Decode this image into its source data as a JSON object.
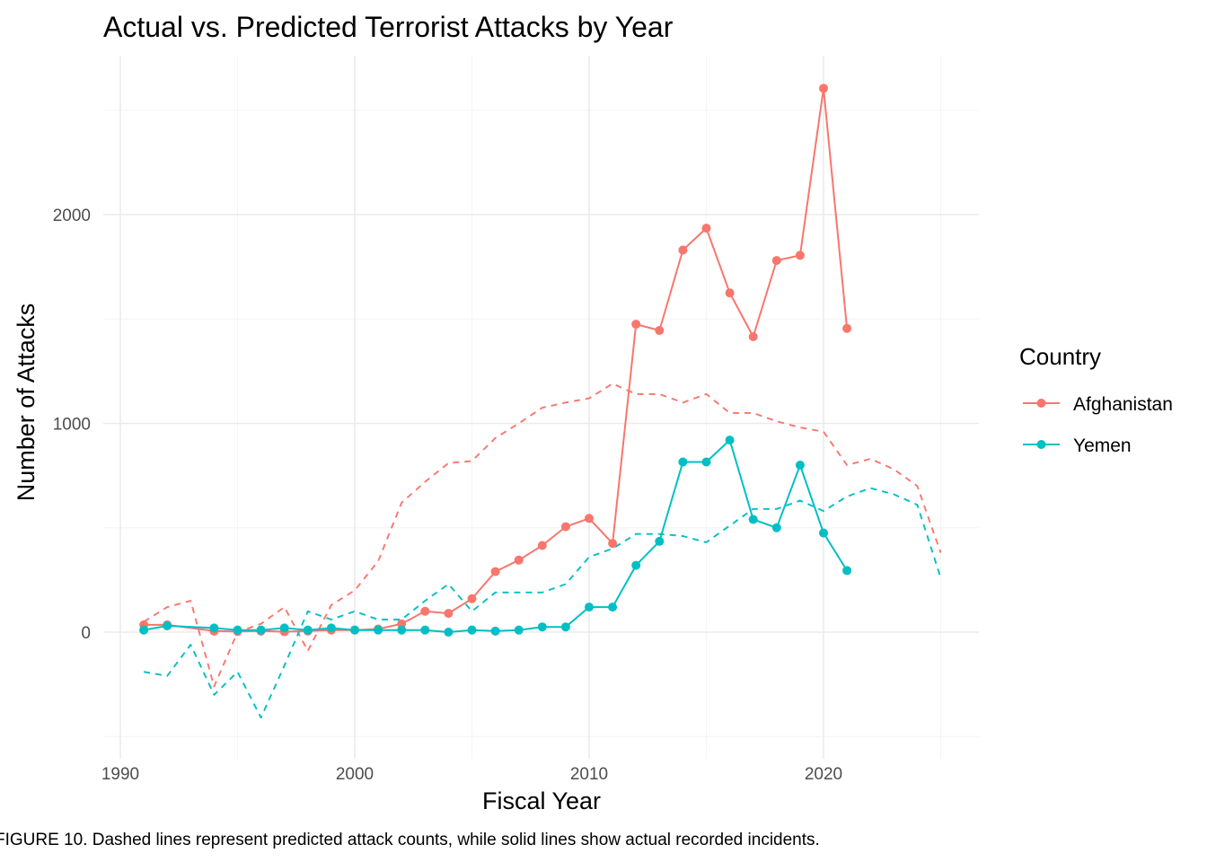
{
  "chart_data": {
    "type": "line",
    "title": "Actual vs. Predicted Terrorist Attacks by Year",
    "xlabel": "Fiscal Year",
    "ylabel": "Number of Attacks",
    "caption": "FIGURE 10. Dashed lines represent predicted attack counts, while solid lines show actual recorded incidents.",
    "xlim": [
      1990,
      2026
    ],
    "ylim": [
      -500,
      2600
    ],
    "x_ticks": [
      1990,
      2000,
      2010,
      2020
    ],
    "y_ticks": [
      0,
      1000,
      2000
    ],
    "grid": true,
    "legend": {
      "title": "Country",
      "position": "right"
    },
    "series": [
      {
        "name": "Afghanistan",
        "color": "#F8766D",
        "kind": "actual",
        "x": [
          1991,
          1992,
          1994,
          1995,
          1996,
          1997,
          1998,
          1999,
          2000,
          2001,
          2002,
          2003,
          2004,
          2005,
          2006,
          2007,
          2008,
          2009,
          2010,
          2011,
          2012,
          2013,
          2014,
          2015,
          2016,
          2017,
          2018,
          2019,
          2020,
          2021
        ],
        "y": [
          35,
          35,
          5,
          3,
          5,
          2,
          5,
          10,
          10,
          15,
          40,
          100,
          90,
          160,
          290,
          345,
          415,
          505,
          545,
          425,
          1475,
          1445,
          1830,
          1935,
          1625,
          1415,
          1780,
          1805,
          2605,
          1455
        ]
      },
      {
        "name": "Yemen",
        "color": "#00BFC4",
        "kind": "actual",
        "x": [
          1991,
          1992,
          1994,
          1995,
          1996,
          1997,
          1998,
          1999,
          2000,
          2001,
          2002,
          2003,
          2004,
          2005,
          2006,
          2007,
          2008,
          2009,
          2010,
          2011,
          2012,
          2013,
          2014,
          2015,
          2016,
          2017,
          2018,
          2019,
          2020,
          2021
        ],
        "y": [
          10,
          30,
          20,
          10,
          10,
          20,
          10,
          20,
          10,
          10,
          10,
          10,
          0,
          10,
          5,
          10,
          25,
          25,
          120,
          120,
          320,
          435,
          815,
          815,
          920,
          540,
          500,
          800,
          475,
          295
        ]
      },
      {
        "name": "Afghanistan",
        "color": "#F8766D",
        "kind": "predicted",
        "x": [
          1991,
          1992,
          1993,
          1994,
          1995,
          1996,
          1997,
          1998,
          1999,
          2000,
          2001,
          2002,
          2003,
          2004,
          2005,
          2006,
          2007,
          2008,
          2009,
          2010,
          2011,
          2012,
          2013,
          2014,
          2015,
          2016,
          2017,
          2018,
          2019,
          2020,
          2021,
          2022,
          2023,
          2024,
          2025
        ],
        "y": [
          50,
          120,
          150,
          -260,
          0,
          40,
          120,
          -90,
          130,
          200,
          340,
          620,
          720,
          810,
          820,
          930,
          1000,
          1075,
          1100,
          1120,
          1190,
          1140,
          1140,
          1100,
          1140,
          1050,
          1050,
          1010,
          980,
          960,
          800,
          830,
          780,
          700,
          380
        ]
      },
      {
        "name": "Yemen",
        "color": "#00BFC4",
        "kind": "predicted",
        "x": [
          1991,
          1992,
          1993,
          1994,
          1995,
          1996,
          1997,
          1998,
          1999,
          2000,
          2001,
          2002,
          2003,
          2004,
          2005,
          2006,
          2007,
          2008,
          2009,
          2010,
          2011,
          2012,
          2013,
          2014,
          2015,
          2016,
          2017,
          2018,
          2019,
          2020,
          2021,
          2022,
          2023,
          2024,
          2025
        ],
        "y": [
          -190,
          -210,
          -60,
          -300,
          -190,
          -410,
          -160,
          100,
          60,
          100,
          60,
          60,
          150,
          230,
          100,
          190,
          190,
          190,
          230,
          360,
          400,
          470,
          470,
          460,
          430,
          510,
          590,
          590,
          630,
          580,
          650,
          690,
          660,
          610,
          260
        ]
      }
    ]
  }
}
